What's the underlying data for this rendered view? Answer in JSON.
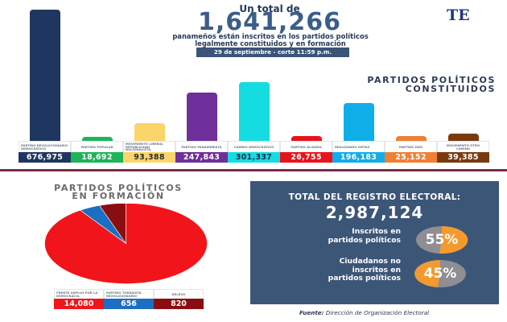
{
  "header": {
    "intro": "Un total de",
    "total_inscritos": "1,641,266",
    "subtitle_line1": "panameños están inscritos en los partidos políticos",
    "subtitle_line2": "legalmente constituidos y en formación",
    "date_badge": "29 de septiembre - corte 11:59 p.m.",
    "logo": "TE"
  },
  "constituidos": {
    "title_line1": "PARTIDOS POLÍTICOS",
    "title_line2": "CONSTITUIDOS"
  },
  "formacion": {
    "title_line1": "PARTIDOS POLÍTICOS",
    "title_line2": "EN FORMACIÓN"
  },
  "total_panel": {
    "title": "TOTAL DEL REGISTRO ELECTORAL:",
    "total": "2,987,124",
    "stat1_label_line1": "Inscritos en",
    "stat1_label_line2": "partidos políticos",
    "stat1_pct": "55%",
    "stat2_label_line1": "Ciudadanos no",
    "stat2_label_line2": "inscritos en",
    "stat2_label_line3": "partidos políticos",
    "stat2_pct": "45%",
    "colors": {
      "panel": "#3c5678",
      "orange": "#f39a2e",
      "gray": "#8e8e93"
    }
  },
  "source": {
    "label": "Fuente:",
    "text": " Dirección de Organización Electoral"
  },
  "chart_data": [
    {
      "type": "bar",
      "title": "PARTIDOS POLÍTICOS CONSTITUIDOS",
      "categories": [
        "PARTIDO REVOLUCIONARIO DEMOCRÁTICO",
        "PARTIDO POPULAR",
        "MOVIMIENTO LIBERAL REPUBLICANO NACIONALISTA",
        "PARTIDO PANAMEÑISTA",
        "CAMBIO DEMOCRÁTICO",
        "PARTIDO ALIANZA",
        "REALIZANDO METAS",
        "PARTIDO PAÍS",
        "MOVIMIENTO OTRO CAMINO"
      ],
      "values": [
        676975,
        18692,
        93388,
        247843,
        301337,
        26755,
        196183,
        25152,
        39385
      ],
      "value_labels": [
        "676,975",
        "18,692",
        "93,388",
        "247,843",
        "301,337",
        "26,755",
        "196,183",
        "25,152",
        "39,385"
      ],
      "colors": [
        "#1f3760",
        "#1fb35a",
        "#fbd46a",
        "#6f2f9b",
        "#14dce0",
        "#e8141b",
        "#10aee8",
        "#ee8035",
        "#7a3a10"
      ],
      "value_text_colors": [
        "#ffffff",
        "#ffffff",
        "#2b2b2b",
        "#ffffff",
        "#1c2d4a",
        "#ffffff",
        "#ffffff",
        "#ffffff",
        "#ffffff"
      ],
      "xlabel": "",
      "ylabel": "",
      "grid": false
    },
    {
      "type": "pie",
      "title": "PARTIDOS POLÍTICOS EN FORMACIÓN",
      "categories": [
        "FRENTE AMPLIO POR LA DEMOCRACIA",
        "PARTIDO TORRIJISTA REVOLUCIONARIO",
        "RELEVO"
      ],
      "values": [
        14080,
        656,
        820
      ],
      "value_labels": [
        "14,080",
        "656",
        "820"
      ],
      "colors": [
        "#f2141b",
        "#1a6fc2",
        "#8a0d12"
      ]
    },
    {
      "type": "pie",
      "title": "TOTAL DEL REGISTRO ELECTORAL: 2,987,124",
      "categories": [
        "Inscritos en partidos políticos",
        "Ciudadanos no inscritos en partidos políticos"
      ],
      "values": [
        55,
        45
      ],
      "value_labels": [
        "55%",
        "45%"
      ]
    }
  ]
}
